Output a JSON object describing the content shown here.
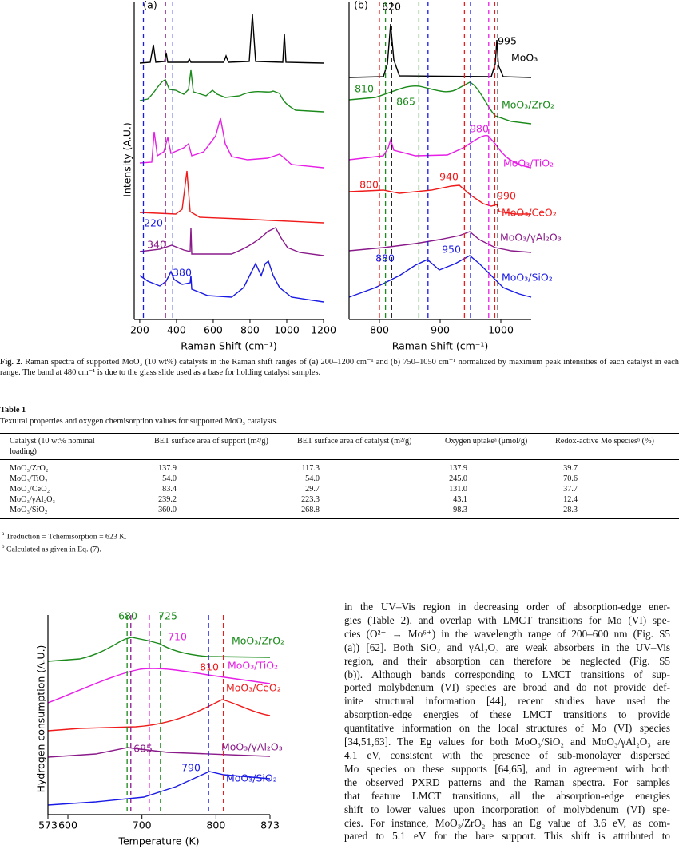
{
  "figure2": {
    "caption_label": "Fig. 2.",
    "caption": "Raman spectra of supported MoO₃ (10 wt%) catalysts in the Raman shift ranges of (a) 200–1200 cm⁻¹ and (b) 750–1050 cm⁻¹ normalized by maximum peak intensities of each catalyst in each range. The band at 480 cm⁻¹ is due to the glass slide used as a base for holding catalyst samples.",
    "ylabel": "Intensity (A.U.)",
    "panels": [
      {
        "label": "(a)",
        "xlabel": "Raman Shift (cm⁻¹)",
        "xlim": [
          170,
          1200
        ],
        "xticks": [
          200,
          400,
          600,
          800,
          1000,
          1200
        ],
        "annotations": [
          {
            "value": 220,
            "color": "#1a1ae6"
          },
          {
            "value": 340,
            "color": "#8a1a8a"
          },
          {
            "value": 380,
            "color": "#1a1ae6"
          }
        ]
      },
      {
        "label": "(b)",
        "xlabel": "Raman Shift (cm⁻¹)",
        "xlim": [
          750,
          1050
        ],
        "xticks": [
          800,
          900,
          1000
        ],
        "annotations": [
          {
            "value": 820,
            "color": "#000000"
          },
          {
            "value": 995,
            "color": "#000000"
          },
          {
            "value": 810,
            "color": "#1a8a1a"
          },
          {
            "value": 865,
            "color": "#1a8a1a"
          },
          {
            "value": 980,
            "color": "#e61ee6"
          },
          {
            "value": 940,
            "color": "#f01a1a"
          },
          {
            "value": 800,
            "color": "#f01a1a"
          },
          {
            "value": 990,
            "color": "#f01a1a"
          },
          {
            "value": 880,
            "color": "#1a1ae6"
          },
          {
            "value": 950,
            "color": "#1a1ae6"
          }
        ],
        "samples": [
          {
            "name": "MoO₃",
            "color": "#000000"
          },
          {
            "name": "MoO₃/ZrO₂",
            "color": "#1a8a1a"
          },
          {
            "name": "MoO₃/TiO₂",
            "color": "#e61ee6"
          },
          {
            "name": "MoO₃/CeO₂",
            "color": "#f01a1a"
          },
          {
            "name": "MoO₃/γAl₂O₃",
            "color": "#8a1a8a"
          },
          {
            "name": "MoO₃/SiO₂",
            "color": "#1a1ae6"
          }
        ]
      }
    ]
  },
  "table1": {
    "title": "Table 1",
    "caption": "Textural properties and oxygen chemisorption values for supported MoO₃ catalysts.",
    "headers": [
      "Catalyst (10 wt% nominal loading)",
      "BET surface area of support (m²/g)",
      "BET surface area of catalyst (m²/g)",
      "Oxygen uptakeᵃ (μmol/g)",
      "Redox-active Mo speciesᵇ (%)"
    ],
    "rows": [
      [
        "MoO₃/ZrO₂",
        "137.9",
        "117.3",
        "137.9",
        "39.7"
      ],
      [
        "MoO₃/TiO₂",
        "54.0",
        "54.0",
        "245.0",
        "70.6"
      ],
      [
        "MoO₃/CeO₂",
        "83.4",
        "29.7",
        "131.0",
        "37.7"
      ],
      [
        "MoO₃/γAl₂O₃",
        "239.2",
        "223.3",
        "43.1",
        "12.4"
      ],
      [
        "MoO₃/SiO₂",
        "360.0",
        "268.8",
        "98.3",
        "28.3"
      ]
    ],
    "footnotes": [
      {
        "mark": "a",
        "text": "Treduction = Tchemisorption = 623 K."
      },
      {
        "mark": "b",
        "text": "Calculated as given in Eq. (7)."
      }
    ]
  },
  "tpr_figure": {
    "xlabel": "Temperature (K)",
    "ylabel": "Hydrogen consumption (A.U.)",
    "xlim": [
      573,
      873
    ],
    "xticks": [
      573,
      600,
      700,
      800,
      873
    ],
    "annotations": [
      {
        "value": 680,
        "color": "#1a8a1a"
      },
      {
        "value": 725,
        "color": "#1a8a1a"
      },
      {
        "value": 710,
        "color": "#e61ee6"
      },
      {
        "value": 810,
        "color": "#f01a1a"
      },
      {
        "value": 685,
        "color": "#8a1a8a"
      },
      {
        "value": 790,
        "color": "#1a1ae6"
      }
    ],
    "samples": [
      {
        "name": "MoO₃/ZrO₂",
        "color": "#1a8a1a"
      },
      {
        "name": "MoO₃/TiO₂",
        "color": "#e61ee6"
      },
      {
        "name": "MoO₃/CeO₂",
        "color": "#f01a1a"
      },
      {
        "name": "MoO₃/γAl₂O₃",
        "color": "#8a1a8a"
      },
      {
        "name": "MoO₃/SiO₂",
        "color": "#1a1ae6"
      }
    ]
  },
  "body_text": {
    "lines": [
      "in the UV–Vis region in decreasing order of absorption-edge ener-",
      "gies (Table 2), and overlap with LMCT transitions for Mo (VI) spe-",
      "cies (O²⁻ → Mo⁶⁺) in the wavelength range of 200–600 nm (Fig. S5",
      "(a)) [62]. Both SiO₂ and γAl₂O₃ are weak absorbers in the UV–Vis",
      "region, and their absorption can therefore be neglected (Fig. S5",
      "(b)). Although bands corresponding to LMCT transitions of sup-",
      "ported molybdenum (VI) species are broad and do not provide def-",
      "inite structural information [44], recent studies have used the",
      "absorption-edge energies of these LMCT transitions to provide",
      "quantitative information on the local structures of Mo (VI) species",
      "[34,51,63]. The Eg values for both MoO₃/SiO₂ and MoO₃/γAl₂O₃ are",
      "4.1 eV, consistent with the presence of sub-monolayer dispersed",
      "Mo species on these supports [64,65], and in agreement with both",
      "the observed PXRD patterns and the Raman spectra. For samples",
      "that feature LMCT transitions, all the absorption-edge energies",
      "shift to lower values upon incorporation of molybdenum (VI) spe-",
      "cies. For instance, MoO₃/ZrO₂ has an Eg value of 3.6 eV, as com-",
      "pared to 5.1 eV for the bare support. This shift is attributed to"
    ]
  }
}
